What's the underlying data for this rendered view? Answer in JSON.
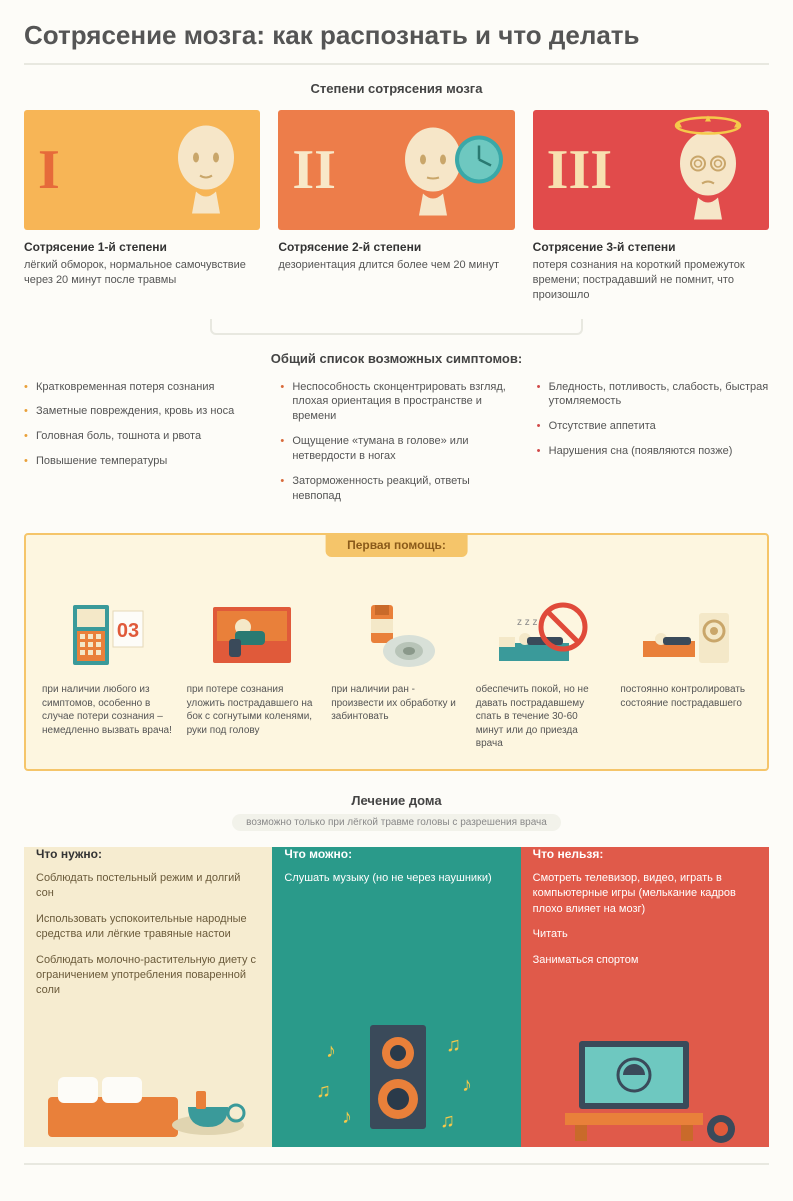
{
  "colors": {
    "bg": "#fdfcf8",
    "text": "#555555",
    "grade1_bg": "#f7b556",
    "grade1_roman": "#e66a3a",
    "grade2_bg": "#ed7d4a",
    "grade2_roman": "#f8e8c8",
    "grade3_bg": "#e14b4b",
    "grade3_roman": "#f8e0b0",
    "head_color": "#f6e6c8",
    "clock_blue": "#3aa8a8",
    "aid_border": "#f5c56a",
    "aid_bg": "#fdf6e0",
    "aid_tab_bg": "#f5c56a",
    "aid_tab_text": "#8a5a1a",
    "treat_need_bg": "#f6ecd0",
    "treat_can_bg": "#2a9a8a",
    "treat_cant_bg": "#e05a4a",
    "bullet1": "#e9a03a",
    "bullet2": "#d96a3a",
    "bullet3": "#d14a4a"
  },
  "title": "Сотрясение мозга: как распознать и что делать",
  "grades_title": "Степени сотрясения мозга",
  "grades": [
    {
      "roman": "I",
      "label": "Сотрясение 1-й степени",
      "desc": "лёгкий обморок, нормальное самочувствие через 20 минут после травмы"
    },
    {
      "roman": "II",
      "label": "Сотрясение 2-й степени",
      "desc": "дезориентация длится более чем 20 минут"
    },
    {
      "roman": "III",
      "label": "Сотрясение 3-й степени",
      "desc": "потеря сознания на короткий промежуток времени; пострадавший не помнит, что произошло"
    }
  ],
  "symptoms_title": "Общий список возможных симптомов:",
  "symptoms": {
    "col1": [
      "Кратковременная потеря сознания",
      "Заметные повреждения, кровь из носа",
      "Головная боль, тошнота и рвота",
      "Повышение температуры"
    ],
    "col2": [
      "Неспособность сконцентрировать взгляд, плохая ориентация в пространстве и времени",
      "Ощущение «тумана в голове» или нетвердости в ногах",
      "Заторможенность реакций, ответы невпопад"
    ],
    "col3": [
      "Бледность, потливость, слабость, быстрая утомляемость",
      "Отсутствие аппетита",
      "Нарушения сна (появляются позже)"
    ]
  },
  "aid_title": "Первая помощь:",
  "aid": [
    {
      "text": "при наличии любого из симптомов, особенно в случае потери сознания – немедленно вызвать врача!"
    },
    {
      "text": "при потере сознания уложить пострадавшего на бок с согнутыми коленями, руки под голову"
    },
    {
      "text": "при наличии ран - произвести их обработку и забинтовать"
    },
    {
      "text": "обеспечить покой, но не давать пострадавшему спать в течение 30-60 минут или до приезда врача"
    },
    {
      "text": "постоянно контролировать состояние пострадавшего"
    }
  ],
  "treat_title": "Лечение дома",
  "treat_sub": "возможно только при лёгкой травме головы с разрешения врача",
  "treat": {
    "need": {
      "title": "Что нужно:",
      "items": [
        "Соблюдать постельный режим и долгий сон",
        "Использовать успокоительные народные средства или лёгкие травяные настои",
        "Соблюдать молочно-растительную диету с ограничением употребления поваренной соли"
      ]
    },
    "can": {
      "title": "Что можно:",
      "items": [
        "Слушать музыку (но не через наушники)"
      ]
    },
    "cant": {
      "title": "Что нельзя:",
      "items": [
        "Смотреть телевизор, видео, играть в компьютерные игры (мелькание кадров плохо влияет на мозг)",
        "Читать",
        "Заниматься спортом"
      ]
    }
  }
}
